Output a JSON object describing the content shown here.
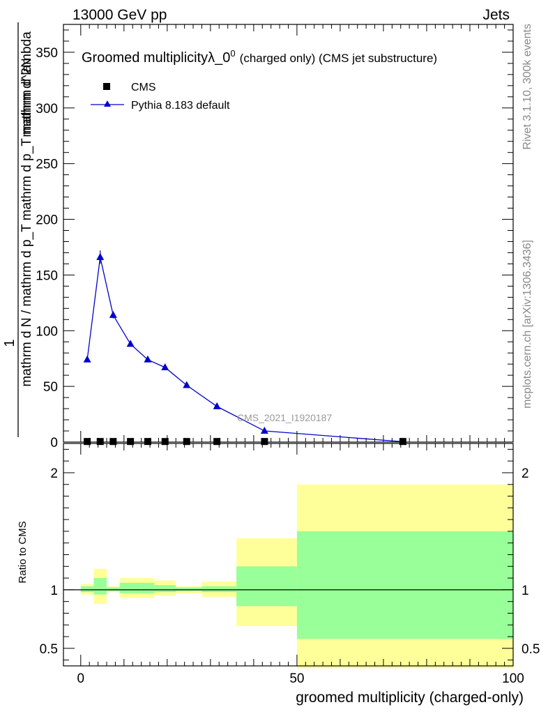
{
  "header": {
    "left": "13000 GeV pp",
    "right": "Jets"
  },
  "side_labels": {
    "rivet": "Rivet 3.1.10,  300k events",
    "mcplots": "mcplots.cern.ch [arXiv:1306.3436]"
  },
  "watermark": "CMS_2021_I1920187",
  "colors": {
    "mc_line": "#0000cc",
    "data_marker": "#000000",
    "band_stat": "#99ff99",
    "band_total": "#ffff99"
  },
  "chart_data": [
    {
      "type": "line",
      "title_main": "Groomed multiplicityλ_0",
      "title_sup": "0",
      "title_tail": "(charged only) (CMS jet substructure)",
      "xlabel": "",
      "ylabel_numer": "1",
      "ylabel_denom": "mathrm d N / mathrm d p_T mathrm d p_T mathrm d lambda",
      "ylabel_extra": "mathrm d^2N",
      "xlim": [
        -4,
        100
      ],
      "ylim": [
        0,
        375
      ],
      "yticks": [
        0,
        50,
        100,
        150,
        200,
        250,
        300,
        350
      ],
      "legend": [
        {
          "name": "CMS",
          "marker": "square"
        },
        {
          "name": "Pythia 8.183 default",
          "marker": "triangle"
        }
      ],
      "series": [
        {
          "name": "CMS",
          "x": [
            1.5,
            4.5,
            7.5,
            11.5,
            15.5,
            19.5,
            24.5,
            31.5,
            42.5,
            74.5
          ],
          "y": [
            0.5,
            0.5,
            0.5,
            0.5,
            0.5,
            0.5,
            0.5,
            0.5,
            0.5,
            0.5
          ]
        },
        {
          "name": "Pythia 8.183 default",
          "x": [
            1.5,
            4.5,
            7.5,
            11.5,
            15.5,
            19.5,
            24.5,
            31.5,
            42.5,
            74.5
          ],
          "y": [
            74,
            166,
            114,
            88,
            74,
            67,
            51,
            32,
            10,
            0.3
          ],
          "yerr": [
            2,
            6,
            3,
            2,
            2,
            2,
            1.5,
            1,
            0.5,
            0.1
          ]
        }
      ]
    },
    {
      "type": "area",
      "xlabel": "groomed multiplicity (charged-only)",
      "ylabel": "Ratio to CMS",
      "xlim": [
        -4,
        100
      ],
      "ylim": [
        0.35,
        2.25
      ],
      "xticks": [
        0,
        50,
        100
      ],
      "yticks": [
        0.5,
        1,
        2
      ],
      "reference": 1,
      "bins": [
        {
          "x0": 0,
          "x1": 3,
          "stat": [
            0.98,
            1.03
          ],
          "total": [
            0.96,
            1.05
          ]
        },
        {
          "x0": 3,
          "x1": 6,
          "stat": [
            0.96,
            1.1
          ],
          "total": [
            0.88,
            1.18
          ]
        },
        {
          "x0": 6,
          "x1": 9,
          "stat": [
            0.99,
            1.02
          ],
          "total": [
            0.98,
            1.03
          ]
        },
        {
          "x0": 9,
          "x1": 14,
          "stat": [
            0.97,
            1.06
          ],
          "total": [
            0.93,
            1.1
          ]
        },
        {
          "x0": 14,
          "x1": 17,
          "stat": [
            0.97,
            1.06
          ],
          "total": [
            0.93,
            1.1
          ]
        },
        {
          "x0": 17,
          "x1": 22,
          "stat": [
            0.98,
            1.04
          ],
          "total": [
            0.95,
            1.08
          ]
        },
        {
          "x0": 22,
          "x1": 28,
          "stat": [
            0.99,
            1.02
          ],
          "total": [
            0.97,
            1.03
          ]
        },
        {
          "x0": 28,
          "x1": 36,
          "stat": [
            0.98,
            1.03
          ],
          "total": [
            0.94,
            1.07
          ]
        },
        {
          "x0": 36,
          "x1": 50,
          "stat": [
            0.86,
            1.2
          ],
          "total": [
            0.69,
            1.44
          ]
        },
        {
          "x0": 50,
          "x1": 100,
          "stat": [
            0.58,
            1.5
          ],
          "total": [
            0.33,
            1.9
          ]
        }
      ]
    }
  ]
}
